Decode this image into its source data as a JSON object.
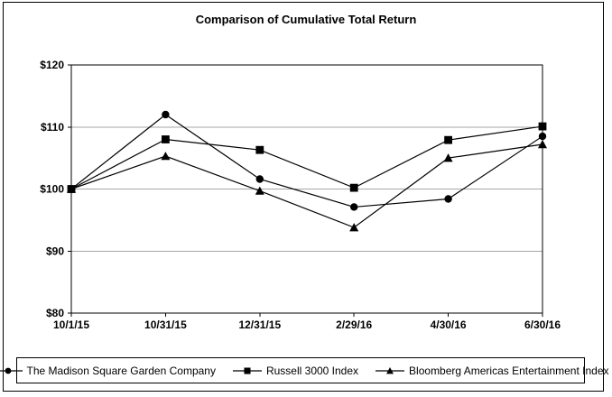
{
  "figure": {
    "background_color": "#ffffff",
    "frame_border_color": "#000000"
  },
  "chart_data": {
    "type": "line",
    "title": "Comparison of Cumulative Total Return",
    "categories": [
      "10/1/15",
      "10/31/15",
      "12/31/15",
      "2/29/16",
      "4/30/16",
      "6/30/16"
    ],
    "series": [
      {
        "name": "The Madison Square Garden Company",
        "marker": "circle",
        "values": [
          100,
          112,
          101.6,
          97.1,
          98.4,
          108.5
        ]
      },
      {
        "name": "Russell 3000 Index",
        "marker": "square",
        "values": [
          100,
          108,
          106.3,
          100.2,
          107.9,
          110.1
        ]
      },
      {
        "name": "Bloomberg Americas Entertainment Index",
        "marker": "triangle",
        "values": [
          100,
          105.3,
          99.7,
          93.8,
          105.0,
          107.2
        ]
      }
    ],
    "xlabel": "",
    "ylabel": "",
    "ylim": [
      80,
      120
    ],
    "ytick_values": [
      80,
      90,
      100,
      110,
      120
    ],
    "ytick_labels": [
      "$80",
      "$90",
      "$100",
      "$110",
      "$120"
    ],
    "grid": "horizontal-only",
    "legend_position": "bottom-boxed",
    "series_color": "#000000",
    "gridline_color": "#a6a6a6"
  }
}
